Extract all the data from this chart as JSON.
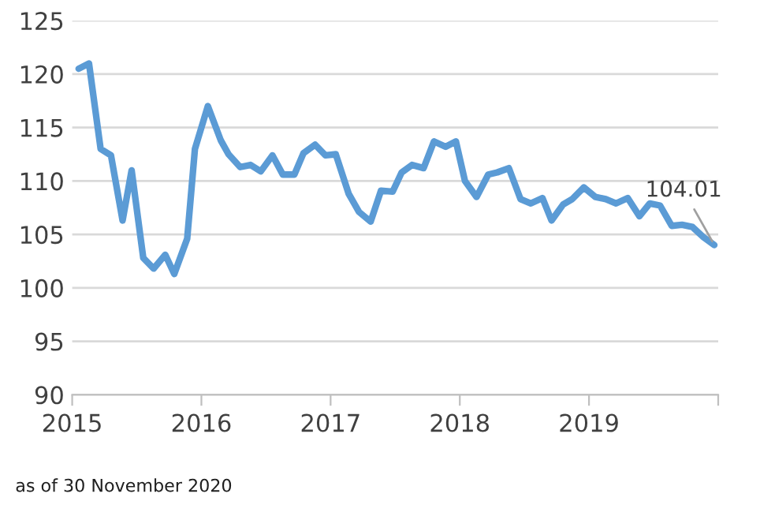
{
  "chart_data": {
    "type": "line",
    "x": [
      2015.05,
      2015.13,
      2015.22,
      2015.3,
      2015.39,
      2015.46,
      2015.55,
      2015.63,
      2015.72,
      2015.79,
      2015.89,
      2015.95,
      2016.05,
      2016.15,
      2016.21,
      2016.3,
      2016.38,
      2016.46,
      2016.55,
      2016.63,
      2016.72,
      2016.79,
      2016.88,
      2016.96,
      2017.04,
      2017.14,
      2017.22,
      2017.31,
      2017.39,
      2017.48,
      2017.55,
      2017.63,
      2017.72,
      2017.8,
      2017.89,
      2017.97,
      2018.04,
      2018.13,
      2018.22,
      2018.29,
      2018.38,
      2018.47,
      2018.55,
      2018.64,
      2018.71,
      2018.8,
      2018.87,
      2018.96,
      2019.05,
      2019.13,
      2019.21,
      2019.3,
      2019.39,
      2019.47,
      2019.55,
      2019.64,
      2019.72,
      2019.8,
      2019.88,
      2019.97
    ],
    "series": [
      {
        "color": "#5b9bd5",
        "values": [
          120.5,
          121.0,
          113.0,
          112.4,
          106.3,
          111.0,
          102.8,
          101.8,
          103.1,
          101.3,
          104.6,
          113.0,
          117.0,
          113.8,
          112.5,
          111.3,
          111.5,
          110.9,
          112.4,
          110.6,
          110.6,
          112.6,
          113.4,
          112.4,
          112.5,
          108.8,
          107.1,
          106.2,
          109.1,
          109.0,
          110.8,
          111.5,
          111.2,
          113.7,
          113.2,
          113.7,
          110.0,
          108.5,
          110.6,
          110.8,
          111.2,
          108.3,
          107.9,
          108.4,
          106.3,
          107.8,
          108.3,
          109.4,
          108.5,
          108.3,
          107.9,
          108.4,
          106.7,
          107.9,
          107.7,
          105.8,
          105.9,
          105.7,
          104.8,
          104.01
        ]
      }
    ],
    "xlim": [
      2015,
      2020
    ],
    "xticks": [
      2015,
      2016,
      2017,
      2018,
      2019,
      {
        "value": 2020,
        "label": null
      }
    ],
    "ylim": [
      90,
      125
    ],
    "yticks": [
      90,
      95,
      100,
      105,
      110,
      115,
      120,
      125
    ],
    "grid": "y",
    "marker": "none",
    "line_style": "solid",
    "annotations": [
      {
        "text": "104.01",
        "x": 2019.97,
        "y": 104.01
      },
      "as of 30 November 2020"
    ]
  }
}
